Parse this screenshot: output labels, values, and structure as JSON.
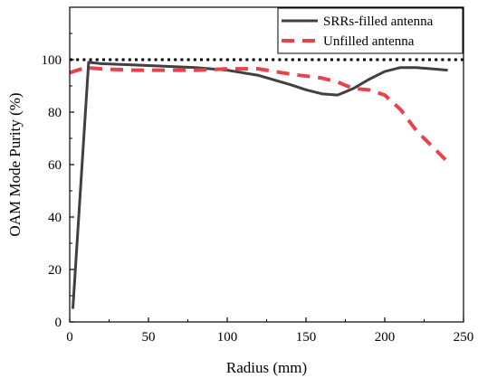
{
  "chart_data": {
    "type": "line",
    "title": "",
    "xlabel": "Radius (mm)",
    "ylabel": "OAM Mode Purity (%)",
    "xlim": [
      0,
      250
    ],
    "ylim": [
      0,
      120
    ],
    "xticks": [
      0,
      50,
      100,
      150,
      200,
      250
    ],
    "yticks": [
      0,
      20,
      40,
      60,
      80,
      100
    ],
    "grid": false,
    "legend_position": "top-right",
    "reference_line": {
      "y": 100,
      "style": "dotted",
      "color": "#000000"
    },
    "series": [
      {
        "name": "SRRs-filled antenna",
        "color": "#404040",
        "style": "solid",
        "x": [
          2,
          12,
          20,
          40,
          60,
          80,
          100,
          120,
          140,
          150,
          160,
          170,
          180,
          190,
          200,
          210,
          220,
          230,
          240
        ],
        "y": [
          5,
          99,
          98.5,
          98,
          97.5,
          97,
          96,
          94,
          90.5,
          88.5,
          87,
          86.5,
          89,
          92.5,
          95.5,
          97,
          97,
          96.5,
          96
        ]
      },
      {
        "name": "Unfilled antenna",
        "color": "#e8434a",
        "style": "dashed",
        "x": [
          0,
          10,
          20,
          40,
          60,
          80,
          100,
          120,
          140,
          160,
          170,
          180,
          190,
          200,
          210,
          220,
          230,
          240
        ],
        "y": [
          95,
          97,
          96.5,
          96,
          96,
          96,
          96.5,
          96.5,
          94.5,
          93,
          91.5,
          89,
          88.5,
          86.5,
          81,
          73,
          67,
          61
        ]
      }
    ]
  }
}
